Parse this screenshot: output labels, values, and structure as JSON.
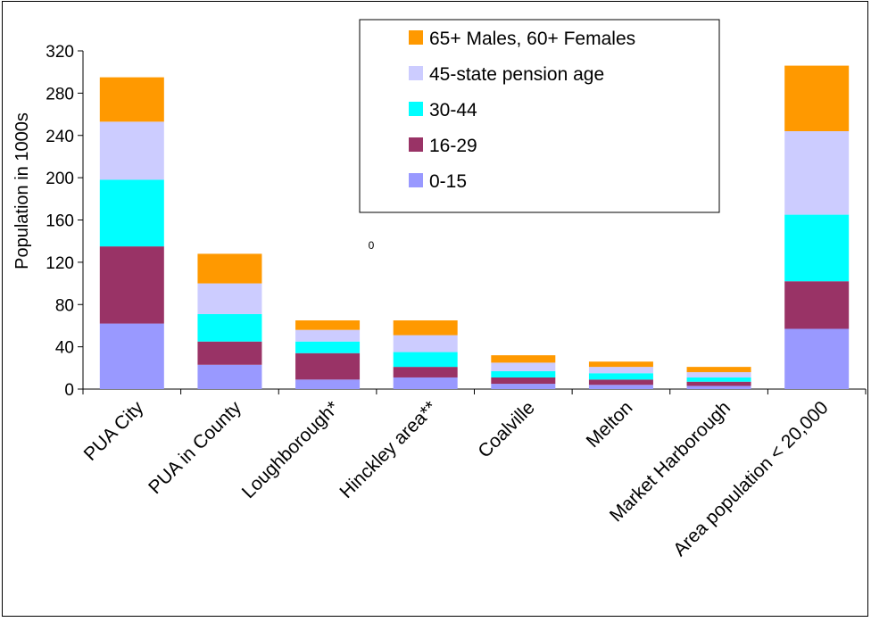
{
  "chart_data": {
    "type": "bar",
    "stacked": true,
    "title": "",
    "xlabel": "",
    "ylabel": "Population in 1000s",
    "ylim": [
      0,
      320
    ],
    "yticks": [
      0,
      40,
      80,
      120,
      160,
      200,
      240,
      280,
      320
    ],
    "grid": false,
    "legend_position": "top-right",
    "categories": [
      "PUA City",
      "PUA in County",
      "Loughborough*",
      "Hinckley area**",
      "Coalville",
      "Melton",
      "Market Harborough",
      "Area population < 20,000"
    ],
    "series": [
      {
        "name": "0-15",
        "color": "#9999ff",
        "values": [
          62,
          23,
          9,
          11,
          5,
          4,
          3,
          57
        ]
      },
      {
        "name": "16-29",
        "color": "#993366",
        "values": [
          73,
          22,
          25,
          10,
          6,
          5,
          4,
          45
        ]
      },
      {
        "name": "30-44",
        "color": "#00ffff",
        "values": [
          63,
          26,
          11,
          14,
          6,
          6,
          4,
          63
        ]
      },
      {
        "name": "45-state pension age",
        "color": "#ccccff",
        "values": [
          55,
          29,
          11,
          16,
          8,
          6,
          5,
          79
        ]
      },
      {
        "name": "65+ Males, 60+ Females",
        "color": "#ff9900",
        "values": [
          42,
          28,
          9,
          14,
          7,
          5,
          5,
          62
        ]
      }
    ],
    "annotations": [
      "0"
    ]
  }
}
